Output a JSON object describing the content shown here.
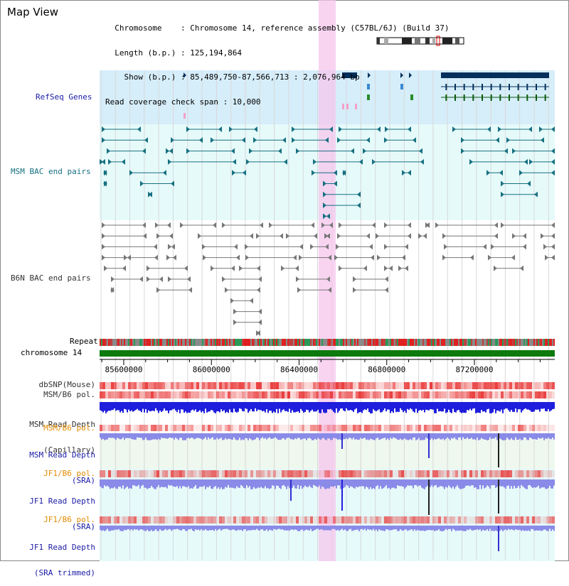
{
  "view": {
    "title": "Map View",
    "info_lines": [
      "  Chromosome    : Chromosome 14, reference assembly (C57BL/6J) (Build 37)",
      "  Length (b.p.) : 125,194,864",
      "    Show (b.p.) : 85,489,750-87,566,713 : 2,076,964 bp",
      "Read coverage check span : 10,000"
    ]
  },
  "tracks": {
    "refseq": "RefSeq Genes",
    "msm_bac": "MSM BAC end pairs",
    "b6n_bac": "B6N BAC end pairs",
    "repeat": "Repeat",
    "chromosome": "chromosome 14",
    "dbsnp": "dbSNP(Mouse)",
    "msm_b6_pol_1": "MSM/B6 pol.",
    "msm_depth_cap": [
      "MSM Read Depth",
      "(Capillary)"
    ],
    "msm_b6_pol_2": "MSM/B6 pol.",
    "msm_depth_sra": [
      "MSM Read Depth",
      "(SRA)"
    ],
    "jf1_b6_pol_1": "JF1/B6 pol.",
    "jf1_depth_sra": [
      "JF1 Read Depth",
      "(SRA)"
    ],
    "jf1_b6_pol_2": "JF1/B6 pol.",
    "jf1_depth_trim": [
      "JF1 Read Depth",
      "(SRA trimmed)"
    ]
  },
  "axis": {
    "ticks": [
      "85600000",
      "86000000",
      "86400000",
      "86800000",
      "87200000"
    ],
    "tick_values": [
      85600000,
      86000000,
      86400000,
      86800000,
      87200000
    ],
    "range": [
      85489750,
      87566713
    ]
  },
  "colors": {
    "refseq_bg": "#d6eefa",
    "bac_bg": "#e6fafa",
    "highlight": "#f5c6ec",
    "gene": "#06305c",
    "msm_feature": "#167080",
    "b6n_feature": "#777777",
    "chromosome": "#0c7a0c",
    "depth_cap": "#1e1edc",
    "depth_sra": "#8a8ae8",
    "pol": "#e83030",
    "label_blue": "#1a1aa6",
    "label_orange": "#e38a00"
  }
}
